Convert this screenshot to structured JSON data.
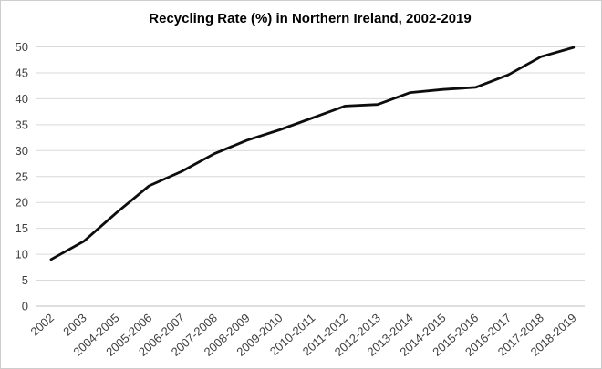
{
  "chart_data": {
    "type": "line",
    "title": "Recycling Rate (%) in Northern Ireland, 2002-2019",
    "categories": [
      "2002",
      "2003",
      "2004-2005",
      "2005-2006",
      "2006-2007",
      "2007-2008",
      "2008-2009",
      "2009-2010",
      "2010-2011",
      "2011-2012",
      "2012-2013",
      "2013-2014",
      "2014-2015",
      "2015-2016",
      "2016-2017",
      "2017-2018",
      "2018-2019"
    ],
    "values": [
      9,
      12.5,
      18,
      23.2,
      26,
      29.4,
      32,
      34,
      36.3,
      38.6,
      38.9,
      41.2,
      41.8,
      42.2,
      44.6,
      48.1,
      49.9
    ],
    "xlabel": "",
    "ylabel": "",
    "ylim": [
      0,
      50
    ],
    "ytick_step": 5,
    "yticks": [
      0,
      5,
      10,
      15,
      20,
      25,
      30,
      35,
      40,
      45,
      50
    ],
    "grid": true,
    "legend": "none",
    "colors": {
      "line": "#0d0d0d",
      "gridline": "#d9d9d9",
      "axis_line": "#bfbfbf",
      "tick_label": "#404040",
      "title": "#000000",
      "background": "#ffffff"
    }
  }
}
